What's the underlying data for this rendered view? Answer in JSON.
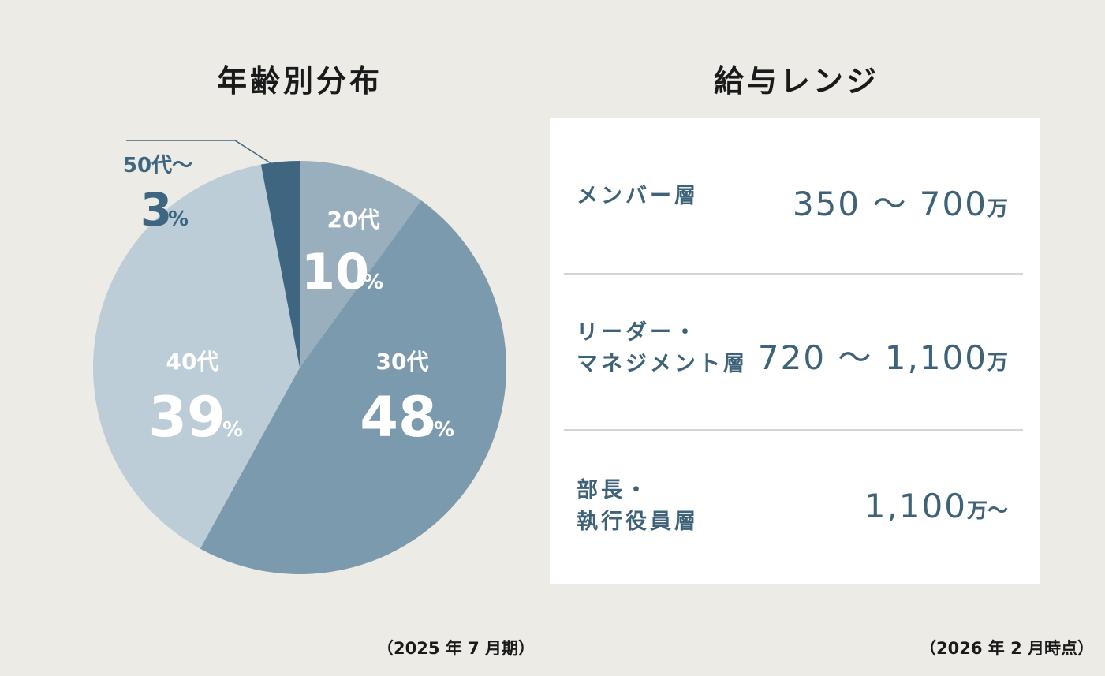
{
  "age": {
    "title": "年齢別分布",
    "note": "（2025 年 7 月期）"
  },
  "salary": {
    "title": "給与レンジ",
    "note": "（2026 年 2 月時点）",
    "rows": [
      {
        "label_lines": [
          "メンバー層"
        ],
        "value": "350 ～ 700",
        "unit": "万"
      },
      {
        "label_lines": [
          "リーダー・",
          "マネジメント層"
        ],
        "value": "720 ～ 1,100",
        "unit": "万"
      },
      {
        "label_lines": [
          "部長・",
          "執行役員層"
        ],
        "value": "1,100",
        "unit": "万～"
      }
    ]
  },
  "chart_data": {
    "type": "pie",
    "title": "年齢別分布",
    "slices": [
      {
        "label": "20代",
        "value": 10,
        "display": "10",
        "color": "#9aafbd"
      },
      {
        "label": "30代",
        "value": 48,
        "display": "48",
        "color": "#7b9aae"
      },
      {
        "label": "40代",
        "value": 39,
        "display": "39",
        "color": "#bccdd7"
      },
      {
        "label": "50代～",
        "value": 3,
        "display": "3",
        "color": "#3e6680"
      }
    ],
    "percent_symbol": "%",
    "colors": {
      "label_light": "#ffffff",
      "label_dark": "#3e6680"
    }
  }
}
